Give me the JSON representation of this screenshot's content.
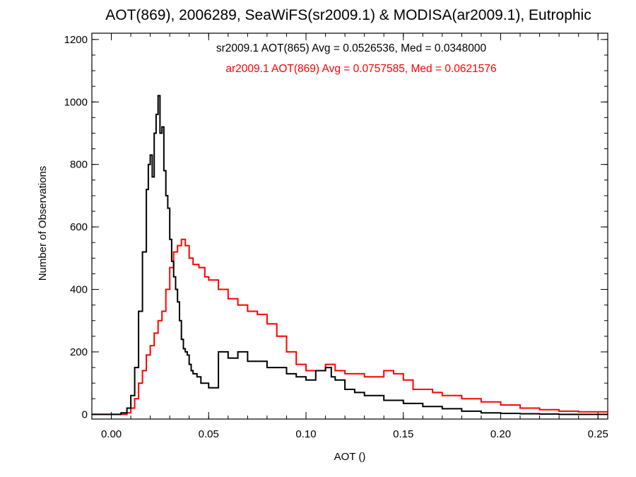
{
  "chart_data": {
    "type": "line",
    "title": "AOT(869), 2006289, SeaWiFS(sr2009.1) & MODISA(ar2009.1), Eutrophic",
    "xlabel": "AOT ()",
    "ylabel": "Number of Observations",
    "xlim": [
      -0.01,
      0.255
    ],
    "ylim": [
      -15,
      1220
    ],
    "xticks": [
      0.0,
      0.05,
      0.1,
      0.15,
      0.2,
      0.25
    ],
    "xtick_labels": [
      "0.00",
      "0.05",
      "0.10",
      "0.15",
      "0.20",
      "0.25"
    ],
    "yticks": [
      0,
      200,
      400,
      600,
      800,
      1000,
      1200
    ],
    "ytick_labels": [
      "0",
      "200",
      "400",
      "600",
      "800",
      "1000",
      "1200"
    ],
    "grid": false,
    "legend": "none",
    "annotations": [
      {
        "text": "sr2009.1 AOT(865) Avg = 0.0526536, Med = 0.0348000",
        "color": "#000000"
      },
      {
        "text": "ar2009.1 AOT(869) Avg = 0.0757585, Med = 0.0621576",
        "color": "#ff0000"
      }
    ],
    "series": [
      {
        "color": "#000000",
        "step": "histogram",
        "x": [
          -0.01,
          0.0,
          0.005,
          0.008,
          0.01,
          0.012,
          0.014,
          0.016,
          0.018,
          0.019,
          0.02,
          0.021,
          0.022,
          0.023,
          0.024,
          0.025,
          0.026,
          0.027,
          0.028,
          0.029,
          0.03,
          0.031,
          0.032,
          0.033,
          0.034,
          0.035,
          0.036,
          0.037,
          0.038,
          0.039,
          0.04,
          0.041,
          0.042,
          0.044,
          0.046,
          0.048,
          0.05,
          0.055,
          0.06,
          0.065,
          0.07,
          0.075,
          0.08,
          0.085,
          0.09,
          0.095,
          0.1,
          0.105,
          0.11,
          0.113,
          0.115,
          0.12,
          0.125,
          0.13,
          0.14,
          0.15,
          0.16,
          0.17,
          0.18,
          0.19,
          0.2,
          0.21,
          0.22,
          0.23,
          0.24,
          0.255
        ],
        "y": [
          0,
          0,
          5,
          20,
          60,
          150,
          330,
          520,
          720,
          800,
          830,
          760,
          900,
          960,
          1020,
          900,
          920,
          780,
          700,
          660,
          560,
          490,
          440,
          400,
          360,
          300,
          240,
          210,
          200,
          190,
          160,
          140,
          130,
          120,
          100,
          100,
          85,
          200,
          180,
          200,
          170,
          170,
          150,
          150,
          130,
          120,
          110,
          140,
          150,
          120,
          110,
          80,
          70,
          60,
          45,
          35,
          25,
          18,
          10,
          5,
          3,
          2,
          1,
          0,
          0,
          0
        ]
      },
      {
        "color": "#ff0000",
        "step": "histogram",
        "x": [
          -0.01,
          0.008,
          0.01,
          0.012,
          0.014,
          0.016,
          0.018,
          0.02,
          0.022,
          0.024,
          0.026,
          0.028,
          0.03,
          0.032,
          0.034,
          0.036,
          0.038,
          0.04,
          0.042,
          0.045,
          0.048,
          0.05,
          0.055,
          0.06,
          0.065,
          0.07,
          0.075,
          0.08,
          0.085,
          0.09,
          0.095,
          0.1,
          0.105,
          0.11,
          0.115,
          0.12,
          0.125,
          0.13,
          0.135,
          0.14,
          0.145,
          0.15,
          0.155,
          0.16,
          0.165,
          0.17,
          0.18,
          0.19,
          0.2,
          0.21,
          0.22,
          0.23,
          0.24,
          0.255
        ],
        "y": [
          0,
          5,
          20,
          50,
          100,
          140,
          190,
          220,
          260,
          300,
          330,
          400,
          470,
          520,
          540,
          560,
          540,
          500,
          480,
          470,
          440,
          430,
          400,
          370,
          350,
          330,
          320,
          290,
          250,
          200,
          160,
          140,
          140,
          160,
          140,
          130,
          130,
          120,
          120,
          140,
          130,
          110,
          80,
          80,
          70,
          60,
          50,
          40,
          30,
          20,
          15,
          10,
          8,
          5
        ]
      }
    ]
  }
}
